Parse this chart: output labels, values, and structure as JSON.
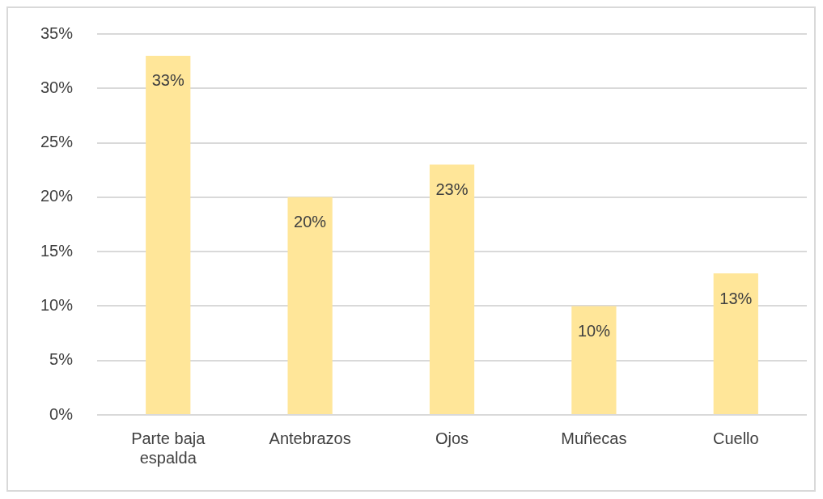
{
  "chart_data": {
    "type": "bar",
    "categories": [
      "Parte baja espalda",
      "Antebrazos",
      "Ojos",
      "Muñecas",
      "Cuello"
    ],
    "values": [
      33,
      20,
      23,
      10,
      13
    ],
    "value_labels": [
      "33%",
      "20%",
      "23%",
      "10%",
      "13%"
    ],
    "color": "#ffe699",
    "ylim": [
      0,
      35
    ],
    "yticks": [
      {
        "value": 0,
        "label": "0%"
      },
      {
        "value": 5,
        "label": "5%"
      },
      {
        "value": 10,
        "label": "10%"
      },
      {
        "value": 15,
        "label": "15%"
      },
      {
        "value": 20,
        "label": "20%"
      },
      {
        "value": 25,
        "label": "25%"
      },
      {
        "value": 30,
        "label": "30%"
      },
      {
        "value": 35,
        "label": "35%"
      }
    ],
    "grid": "y",
    "legend": false
  }
}
